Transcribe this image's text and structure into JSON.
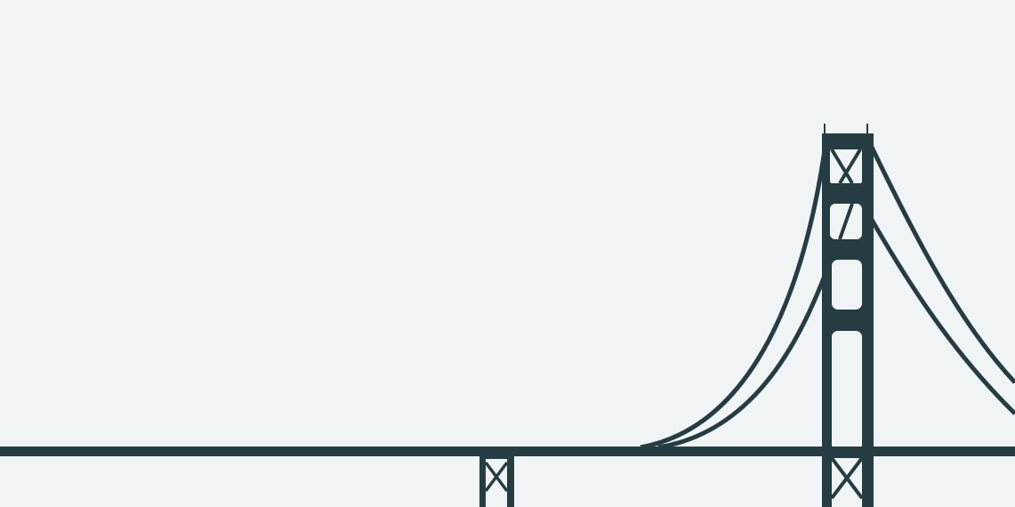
{
  "scene": {
    "subject": "bridge-silhouette",
    "colors": {
      "background": "#f1f4f5",
      "ink": "#253d42"
    }
  }
}
